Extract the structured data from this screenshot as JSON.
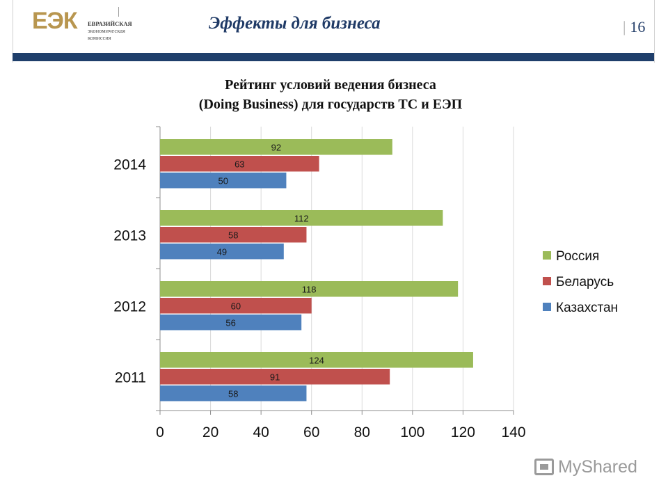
{
  "header": {
    "logo_mark": "ЕЭК",
    "logo_sub": [
      "ЕВРАЗИЙСКАЯ",
      "экономическая",
      "комиссия"
    ],
    "title": "Эффекты для бизнеса",
    "page_sep": "|",
    "page_number": "16"
  },
  "colors": {
    "header_band": "#1f3f6b",
    "logo": "#b8964f",
    "russia": "#9bbb59",
    "belarus": "#c0504d",
    "kazakhstan": "#4f81bd"
  },
  "chart_data": {
    "type": "bar",
    "orientation": "horizontal",
    "title": [
      "Рейтинг условий ведения бизнеса",
      "(Doing Business) для государств ТС и ЕЭП"
    ],
    "categories": [
      "2014",
      "2013",
      "2012",
      "2011"
    ],
    "series": [
      {
        "name": "Россия",
        "color": "#9bbb59",
        "values": [
          92,
          112,
          118,
          124
        ]
      },
      {
        "name": "Беларусь",
        "color": "#c0504d",
        "values": [
          63,
          58,
          60,
          91
        ]
      },
      {
        "name": "Казахстан",
        "color": "#4f81bd",
        "values": [
          50,
          49,
          56,
          58
        ]
      }
    ],
    "xlim": [
      0,
      140
    ],
    "xticks": [
      "0",
      "20",
      "40",
      "60",
      "80",
      "100",
      "120",
      "140"
    ],
    "xlabel": "",
    "ylabel": "",
    "grid": true,
    "legend_position": "right"
  },
  "watermark": "MyShared"
}
